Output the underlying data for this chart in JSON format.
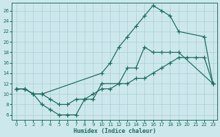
{
  "bg_color": "#cde8ec",
  "grid_color": "#a8cdd4",
  "line_color": "#1a6b5a",
  "xlabel": "Humidex (Indice chaleur)",
  "xlim": [
    -0.5,
    23.5
  ],
  "ylim": [
    5,
    27.5
  ],
  "xticks": [
    0,
    1,
    2,
    3,
    4,
    5,
    6,
    7,
    8,
    9,
    10,
    11,
    12,
    13,
    14,
    15,
    16,
    17,
    18,
    19,
    20,
    21,
    22,
    23
  ],
  "yticks": [
    6,
    8,
    10,
    12,
    14,
    16,
    18,
    20,
    22,
    24,
    26
  ],
  "curve_top": {
    "x": [
      0,
      1,
      2,
      3,
      10,
      11,
      12,
      13,
      14,
      15,
      16,
      17,
      18,
      19,
      22,
      23
    ],
    "y": [
      11,
      11,
      10,
      10,
      14,
      16,
      19,
      21,
      23,
      25,
      27,
      26,
      25,
      22,
      21,
      12
    ]
  },
  "curve_mid": {
    "x": [
      0,
      1,
      2,
      3,
      4,
      5,
      6,
      7,
      8,
      9,
      10,
      11,
      12,
      13,
      14,
      15,
      16,
      17,
      18,
      19,
      20,
      21,
      22,
      23
    ],
    "y": [
      11,
      11,
      10,
      10,
      9,
      8,
      8,
      9,
      9,
      10,
      11,
      11,
      12,
      12,
      13,
      13,
      14,
      15,
      16,
      17,
      17,
      17,
      17,
      12
    ]
  },
  "curve_bot": {
    "x": [
      0,
      1,
      2,
      3,
      4,
      5,
      6,
      7,
      8,
      9,
      10,
      12,
      13,
      14,
      15,
      16,
      17,
      18,
      19,
      23
    ],
    "y": [
      11,
      11,
      10,
      8,
      7,
      6,
      6,
      6,
      9,
      9,
      12,
      12,
      15,
      15,
      19,
      18,
      18,
      18,
      18,
      12
    ]
  }
}
